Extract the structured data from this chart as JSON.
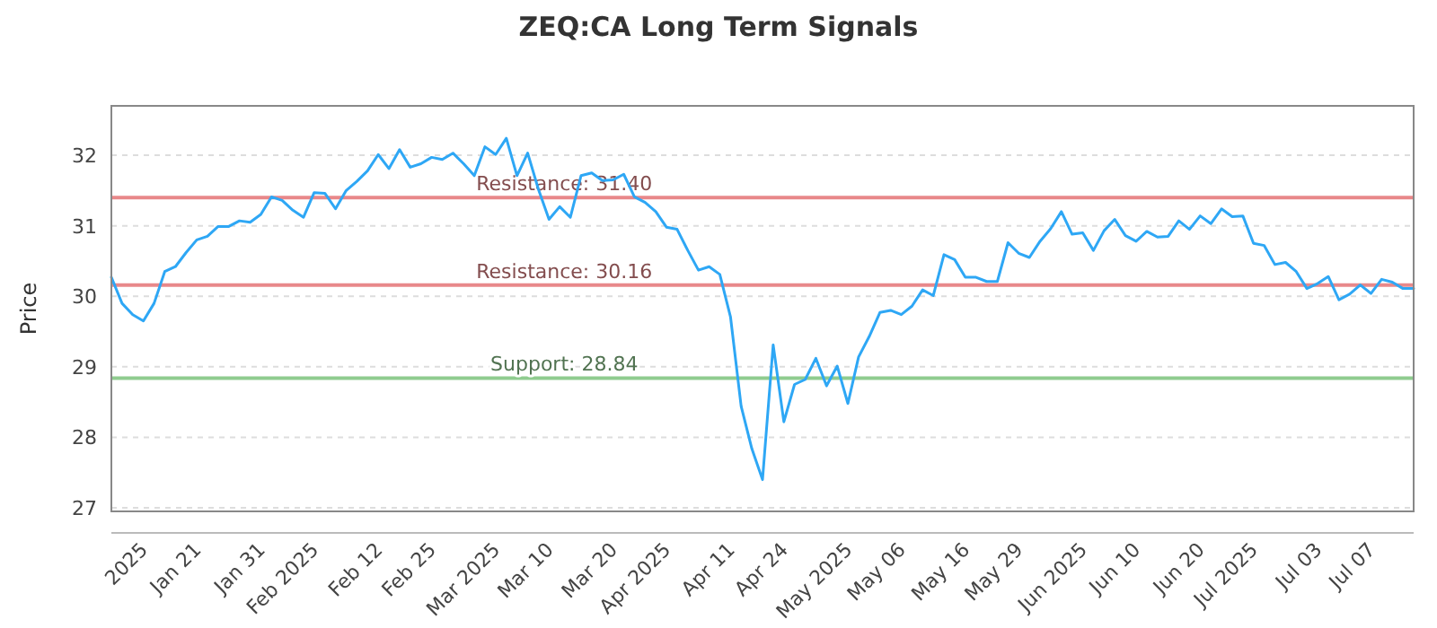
{
  "chart_data": {
    "type": "line",
    "title": "ZEQ:CA Long Term Signals",
    "ylabel": "Price",
    "categories": [
      null,
      null,
      null,
      "2025",
      null,
      null,
      null,
      null,
      "Jan 21",
      null,
      null,
      null,
      null,
      null,
      "Jan 31",
      null,
      null,
      null,
      null,
      "Feb 2025",
      null,
      null,
      null,
      null,
      null,
      "Feb 12",
      null,
      null,
      null,
      null,
      "Feb 25",
      null,
      null,
      null,
      null,
      null,
      "Mar 2025",
      null,
      null,
      null,
      null,
      "Mar 10",
      null,
      null,
      null,
      null,
      null,
      "Mar 20",
      null,
      null,
      null,
      null,
      "Apr 2025",
      null,
      null,
      null,
      null,
      null,
      "Apr 11",
      null,
      null,
      null,
      null,
      "Apr 24",
      null,
      null,
      null,
      null,
      null,
      "May 2025",
      null,
      null,
      null,
      null,
      "May 06",
      null,
      null,
      null,
      null,
      null,
      "May 16",
      null,
      null,
      null,
      null,
      "May 29",
      null,
      null,
      null,
      null,
      null,
      "Jun 2025",
      null,
      null,
      null,
      null,
      "Jun 10",
      null,
      null,
      null,
      null,
      null,
      "Jun 20",
      null,
      null,
      null,
      null,
      "Jul 2025",
      null,
      null,
      null,
      null,
      null,
      "Jul 03",
      null,
      null,
      null,
      null,
      "Jul 07",
      null,
      null,
      null,
      null
    ],
    "series": [
      {
        "color": "#2ea7f5",
        "values": [
          30.27,
          29.9,
          29.74,
          29.65,
          29.9,
          30.35,
          30.42,
          30.62,
          30.8,
          30.85,
          30.99,
          30.99,
          31.07,
          31.05,
          31.16,
          31.41,
          31.36,
          31.22,
          31.12,
          31.47,
          31.46,
          31.24,
          31.5,
          31.63,
          31.78,
          32.01,
          31.81,
          32.08,
          31.83,
          31.88,
          31.97,
          31.94,
          32.03,
          31.88,
          31.71,
          32.12,
          32.01,
          32.24,
          31.71,
          32.03,
          31.52,
          31.09,
          31.27,
          31.12,
          31.71,
          31.75,
          31.64,
          31.65,
          31.73,
          31.41,
          31.33,
          31.2,
          30.98,
          30.95,
          30.65,
          30.37,
          30.42,
          30.31,
          29.71,
          28.44,
          27.84,
          27.4,
          29.31,
          28.22,
          28.75,
          28.82,
          29.12,
          28.73,
          29.01,
          28.48,
          29.14,
          29.43,
          29.77,
          29.8,
          29.74,
          29.86,
          30.09,
          30.01,
          30.59,
          30.52,
          30.27,
          30.27,
          30.21,
          30.21,
          30.76,
          30.61,
          30.55,
          30.78,
          30.96,
          31.2,
          30.88,
          30.9,
          30.65,
          30.93,
          31.09,
          30.86,
          30.78,
          30.92,
          30.84,
          30.85,
          31.07,
          30.95,
          31.14,
          31.03,
          31.24,
          31.13,
          31.14,
          30.75,
          30.72,
          30.45,
          30.48,
          30.35,
          30.11,
          30.18,
          30.28,
          29.95,
          30.03,
          30.16,
          30.04,
          30.24,
          30.2,
          30.11,
          30.11
        ]
      }
    ],
    "ylim": [
      26.95,
      32.7
    ],
    "yticks": [
      27,
      28,
      29,
      30,
      31,
      32
    ],
    "grid": "y",
    "ref_lines": [
      {
        "axis": "y",
        "value": 31.4,
        "label": "Resistance: 31.40",
        "color": "#e8888a"
      },
      {
        "axis": "y",
        "value": 30.16,
        "label": "Resistance: 30.16",
        "color": "#e8888a"
      },
      {
        "axis": "y",
        "value": 28.84,
        "label": "Support: 28.84",
        "color": "#8fcc8f"
      }
    ]
  }
}
